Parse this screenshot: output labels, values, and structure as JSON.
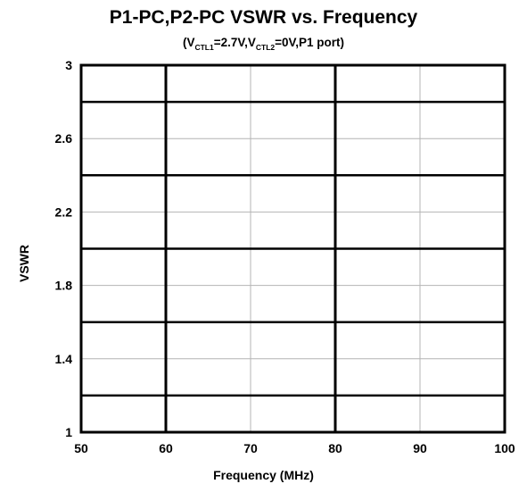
{
  "chart_data": {
    "type": "line",
    "title": "P1-PC,P2-PC VSWR vs. Frequency",
    "subtitle": {
      "open": "(V",
      "sub1": "CTL1",
      "mid1": "=2.7V,V",
      "sub2": "CTL2",
      "rest": "=0V,P1 port)"
    },
    "xlabel": "Frequency (MHz)",
    "ylabel": "VSWR",
    "xlim": [
      50,
      100
    ],
    "ylim": [
      1,
      3
    ],
    "x_ticks": [
      50,
      60,
      70,
      80,
      90,
      100
    ],
    "x_tick_labels": [
      "50",
      "60",
      "70",
      "80",
      "90",
      "100"
    ],
    "y_ticks": [
      1,
      1.4,
      1.8,
      2.2,
      2.6,
      3
    ],
    "y_tick_labels": [
      "1",
      "1.4",
      "1.8",
      "2.2",
      "2.6",
      "3"
    ],
    "major_x_gridlines": [
      60,
      80
    ],
    "major_y_gridlines": [
      1.2,
      1.6,
      2.0,
      2.4,
      2.8
    ],
    "minor_x_gridlines": [
      70,
      90
    ],
    "minor_y_gridlines": [
      1.4,
      1.8,
      2.2,
      2.6
    ],
    "grid": true,
    "series": []
  }
}
